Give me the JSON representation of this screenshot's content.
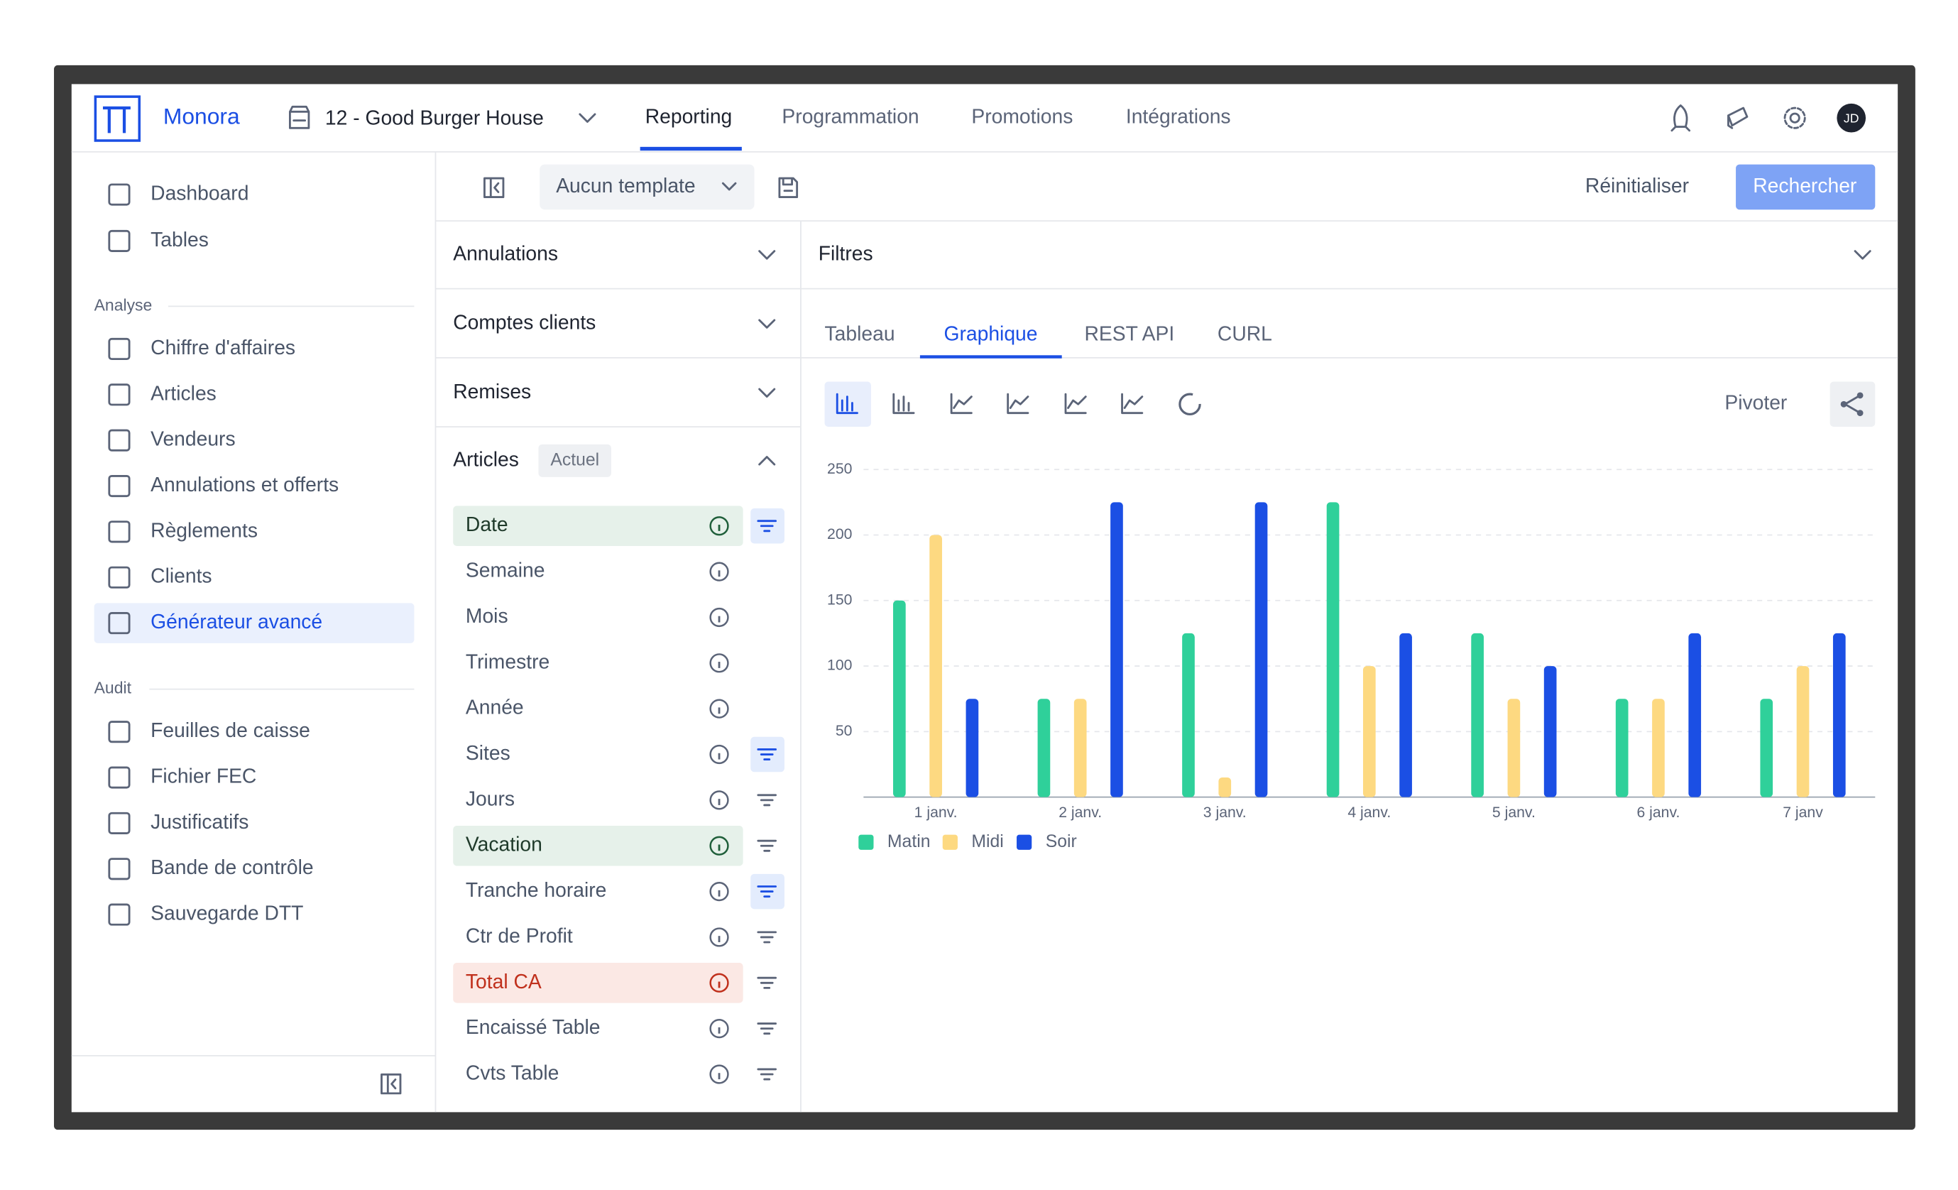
{
  "header": {
    "brand": "Monora",
    "store": "12 - Good Burger House",
    "nav": [
      "Reporting",
      "Programmation",
      "Promotions",
      "Intégrations"
    ],
    "active_nav": 0,
    "avatar": "JD"
  },
  "sidebar": {
    "top": [
      "Dashboard",
      "Tables"
    ],
    "sections": [
      {
        "title": "Analyse",
        "items": [
          "Chiffre d'affaires",
          "Articles",
          "Vendeurs",
          "Annulations et offerts",
          "Règlements",
          "Clients",
          "Générateur avancé"
        ],
        "active": 6
      },
      {
        "title": "Audit",
        "items": [
          "Feuilles de caisse",
          "Fichier FEC",
          "Justificatifs",
          "Bande de contrôle",
          "Sauvegarde DTT"
        ]
      }
    ]
  },
  "toolbar": {
    "template": "Aucun template",
    "reset": "Réinitialiser",
    "search": "Rechercher"
  },
  "groups": [
    "Annulations",
    "Comptes clients",
    "Remises"
  ],
  "articles": {
    "title": "Articles",
    "tag": "Actuel",
    "fields": [
      {
        "name": "Date",
        "highlight": "green",
        "filter": "active"
      },
      {
        "name": "Semaine"
      },
      {
        "name": "Mois"
      },
      {
        "name": "Trimestre"
      },
      {
        "name": "Année"
      },
      {
        "name": "Sites",
        "filter": "active"
      },
      {
        "name": "Jours",
        "filter": "plain"
      },
      {
        "name": "Vacation",
        "highlight": "green",
        "filter": "plain"
      },
      {
        "name": "Tranche horaire",
        "filter": "active"
      },
      {
        "name": "Ctr de Profit",
        "filter": "plain"
      },
      {
        "name": "Total CA",
        "highlight": "red",
        "filter": "plain"
      },
      {
        "name": "Encaissé Table",
        "filter": "plain"
      },
      {
        "name": "Cvts Table",
        "filter": "plain"
      }
    ]
  },
  "filters": {
    "title": "Filtres"
  },
  "tabs": [
    "Tableau",
    "Graphique",
    "REST API",
    "CURL"
  ],
  "active_tab": 1,
  "pivot": "Pivoter",
  "chart_data": {
    "type": "bar",
    "categories": [
      "1 janv.",
      "2 janv.",
      "3 janv.",
      "4 janv.",
      "5 janv.",
      "6 janv.",
      "7 janv"
    ],
    "series": [
      {
        "name": "Matin",
        "color": "#2fd09a",
        "values": [
          150,
          75,
          125,
          225,
          125,
          75,
          75
        ]
      },
      {
        "name": "Midi",
        "color": "#fdd981",
        "values": [
          200,
          75,
          15,
          100,
          75,
          75,
          100
        ]
      },
      {
        "name": "Soir",
        "color": "#1b4fe4",
        "values": [
          75,
          225,
          225,
          125,
          100,
          125,
          125
        ]
      }
    ],
    "ylim": [
      0,
      250
    ],
    "yticks": [
      50,
      100,
      150,
      200,
      250
    ],
    "grid": true
  }
}
